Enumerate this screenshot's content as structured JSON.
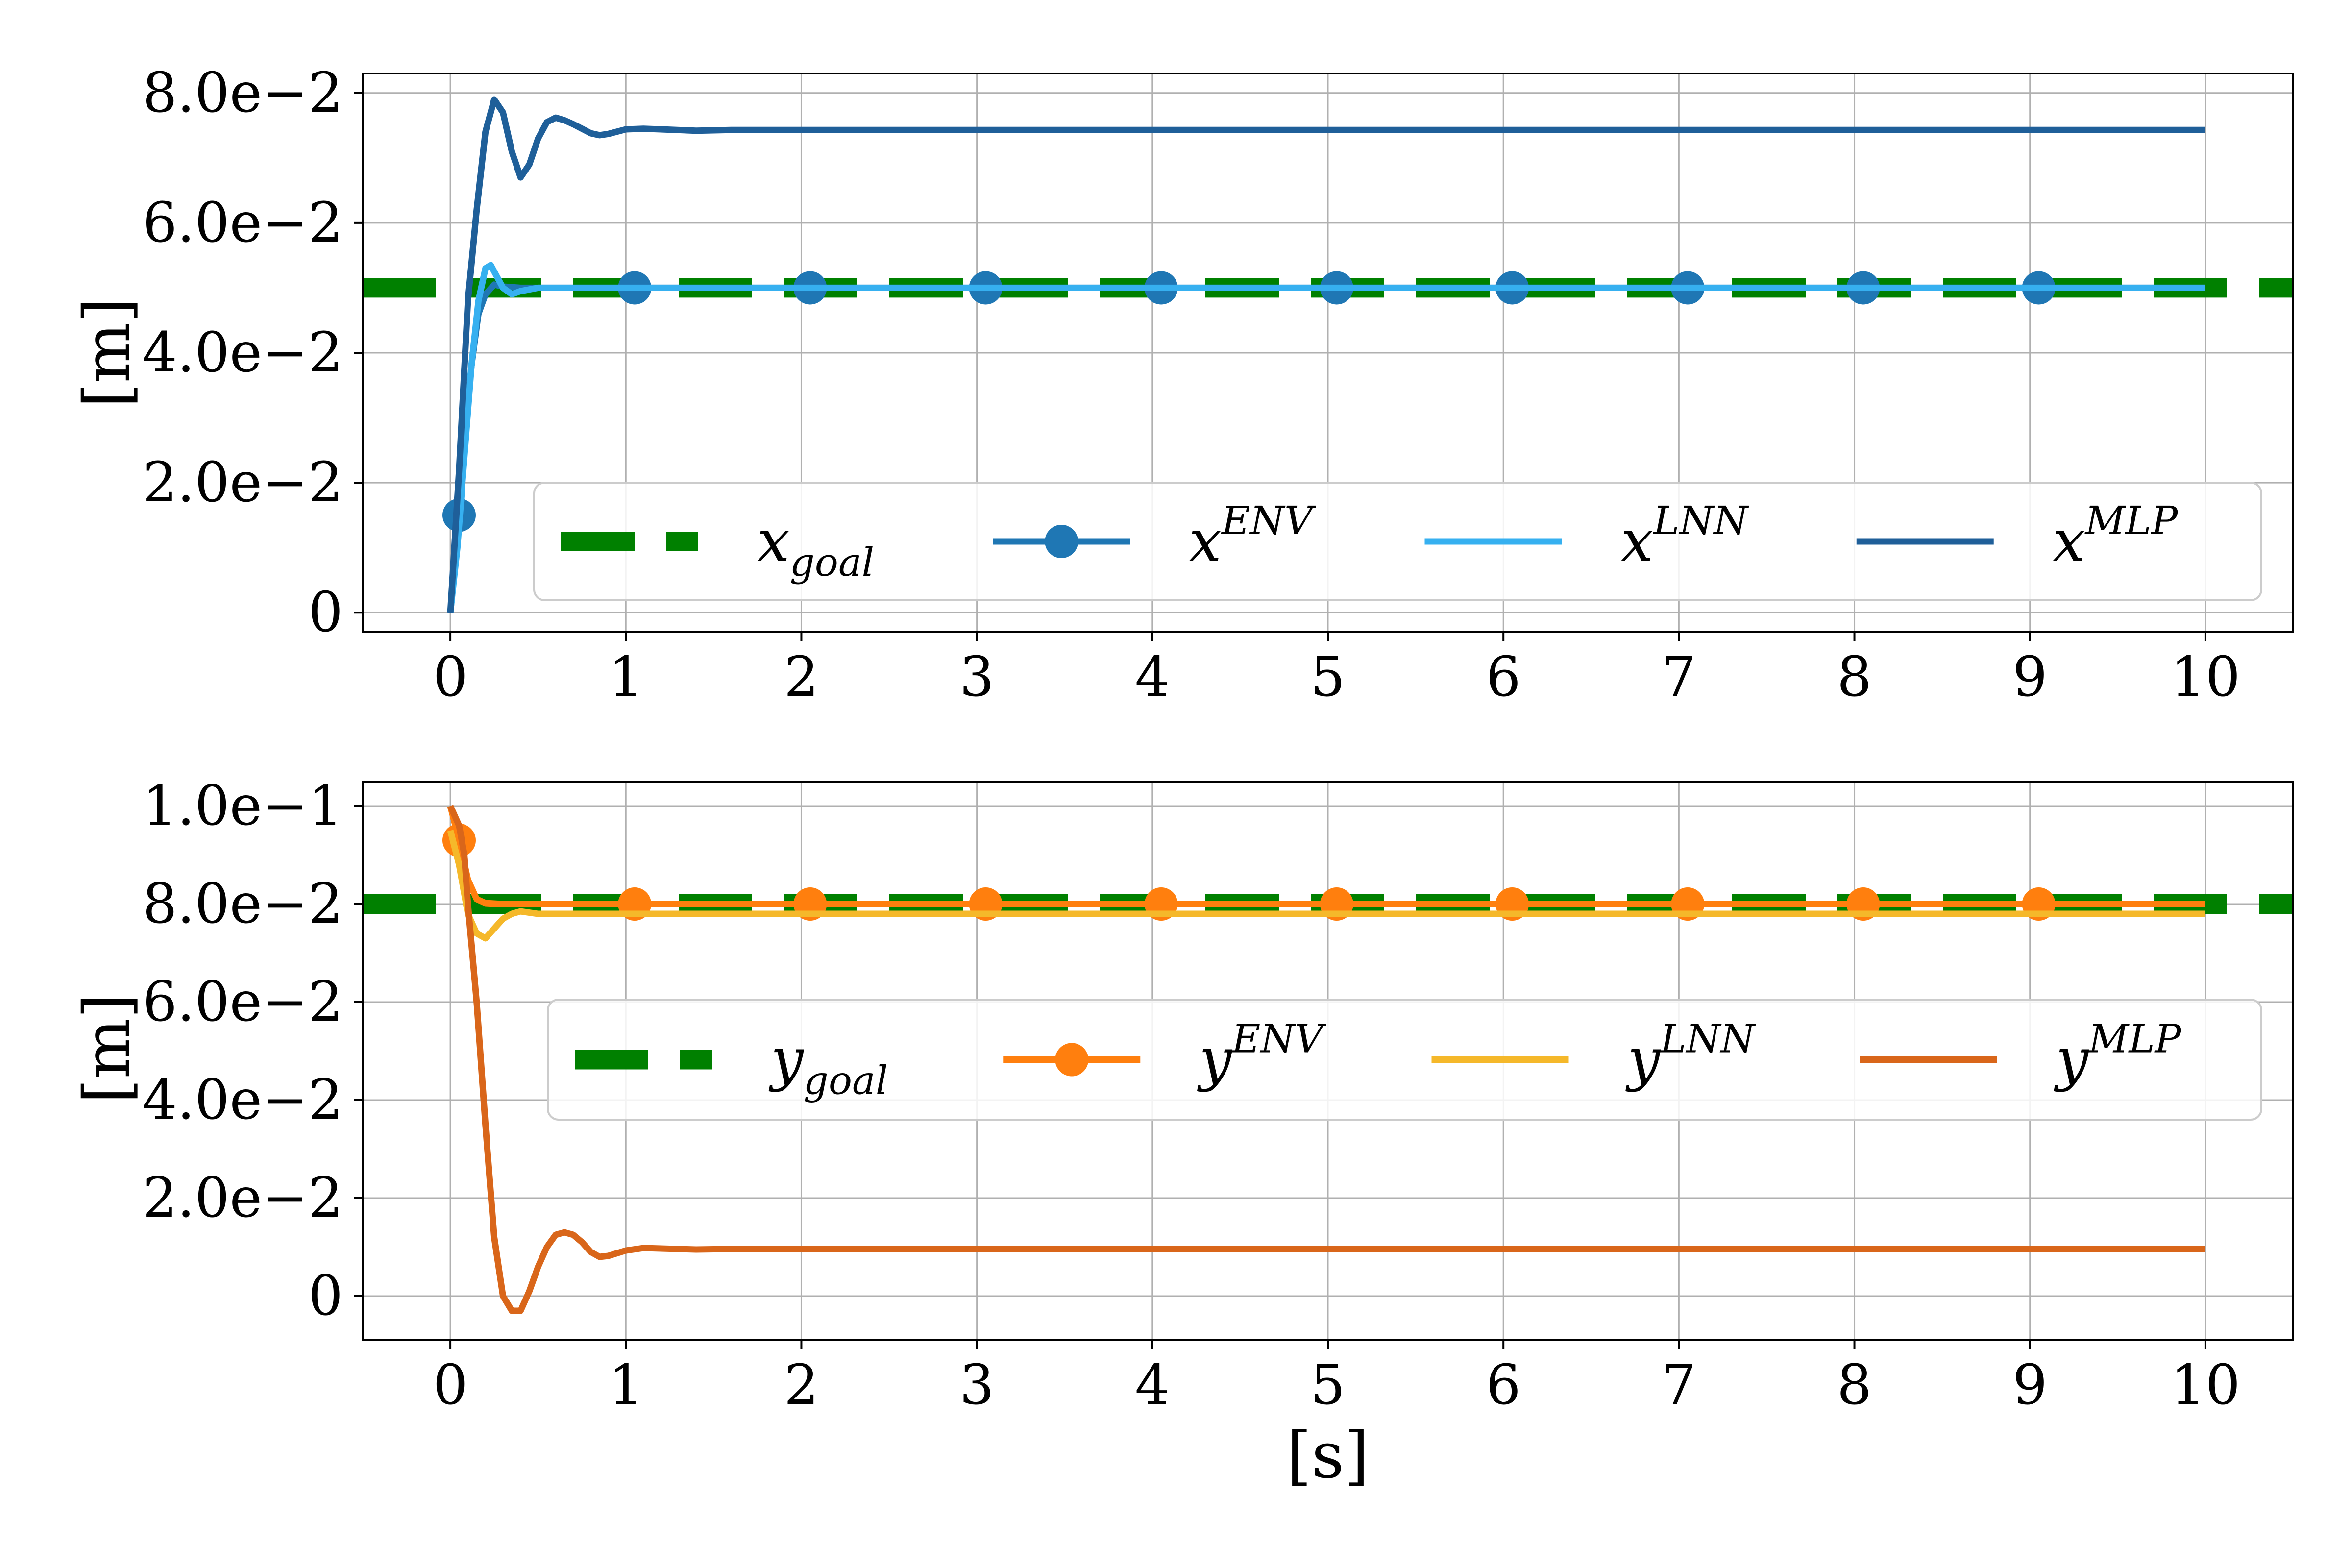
{
  "chart_data": [
    {
      "type": "line",
      "title": "",
      "xlabel": "",
      "ylabel": "[m]",
      "xlim": [
        -0.5,
        10.5
      ],
      "ylim": [
        -0.003,
        0.083
      ],
      "xticks": [
        "0",
        "1",
        "2",
        "3",
        "4",
        "5",
        "6",
        "7",
        "8",
        "9",
        "10"
      ],
      "yticks": [
        {
          "value": 0,
          "label": "0"
        },
        {
          "value": 0.02,
          "label": "2.0e−2"
        },
        {
          "value": 0.04,
          "label": "4.0e−2"
        },
        {
          "value": 0.06,
          "label": "6.0e−2"
        },
        {
          "value": 0.08,
          "label": "8.0e−2"
        }
      ],
      "grid": true,
      "legend": {
        "placement": "lower-right",
        "entries": [
          {
            "base": "x",
            "sub": "goal",
            "sup": ""
          },
          {
            "base": "x",
            "sub": "",
            "sup": "ENV"
          },
          {
            "base": "x",
            "sub": "",
            "sup": "LNN"
          },
          {
            "base": "x",
            "sub": "",
            "sup": "MLP"
          }
        ]
      },
      "series": [
        {
          "name": "x_goal",
          "style": "dashed",
          "color": "#008000",
          "x": [
            -0.5,
            10.5
          ],
          "y": [
            0.05,
            0.05
          ]
        },
        {
          "name": "x^ENV",
          "style": "line-marker",
          "color": "#1f77b4",
          "x": [
            0,
            0.03,
            0.05,
            0.08,
            0.12,
            0.16,
            0.2,
            0.25,
            0.3,
            0.4,
            0.5,
            0.6,
            0.8,
            1.0,
            1.5,
            2,
            3,
            4,
            5,
            6,
            7,
            8,
            9,
            10
          ],
          "y": [
            0,
            0.008,
            0.015,
            0.026,
            0.038,
            0.046,
            0.049,
            0.0505,
            0.0502,
            0.05,
            0.05,
            0.05,
            0.05,
            0.05,
            0.05,
            0.05,
            0.05,
            0.05,
            0.05,
            0.05,
            0.05,
            0.05,
            0.05,
            0.05
          ],
          "markers_x": [
            0.05,
            1.05,
            2.05,
            3.05,
            4.05,
            5.05,
            6.05,
            7.05,
            8.05,
            9.05
          ],
          "markers_y": [
            0.015,
            0.05,
            0.05,
            0.05,
            0.05,
            0.05,
            0.05,
            0.05,
            0.05,
            0.05
          ]
        },
        {
          "name": "x^LNN",
          "style": "line",
          "color": "#36b0f0",
          "x": [
            0,
            0.04,
            0.08,
            0.12,
            0.16,
            0.2,
            0.23,
            0.26,
            0.3,
            0.35,
            0.4,
            0.5,
            0.6,
            0.8,
            1.0,
            2,
            5,
            10
          ],
          "y": [
            0,
            0.01,
            0.024,
            0.038,
            0.048,
            0.053,
            0.0535,
            0.052,
            0.05,
            0.049,
            0.0495,
            0.05,
            0.05,
            0.05,
            0.05,
            0.05,
            0.05,
            0.05
          ]
        },
        {
          "name": "x^MLP",
          "style": "line",
          "color": "#1f5f99",
          "x": [
            0,
            0.05,
            0.1,
            0.15,
            0.2,
            0.25,
            0.3,
            0.35,
            0.4,
            0.45,
            0.5,
            0.55,
            0.6,
            0.65,
            0.7,
            0.75,
            0.8,
            0.85,
            0.9,
            1.0,
            1.1,
            1.2,
            1.4,
            1.6,
            2,
            3,
            5,
            10
          ],
          "y": [
            0,
            0.022,
            0.048,
            0.062,
            0.074,
            0.079,
            0.077,
            0.071,
            0.067,
            0.069,
            0.073,
            0.0755,
            0.0762,
            0.0758,
            0.0752,
            0.0745,
            0.0738,
            0.0735,
            0.0737,
            0.0744,
            0.0745,
            0.0744,
            0.0742,
            0.0743,
            0.0743,
            0.0743,
            0.0743,
            0.0743
          ]
        }
      ]
    },
    {
      "type": "line",
      "title": "",
      "xlabel": "[s]",
      "ylabel": "[m]",
      "xlim": [
        -0.5,
        10.5
      ],
      "ylim": [
        -0.009,
        0.105
      ],
      "xticks": [
        "0",
        "1",
        "2",
        "3",
        "4",
        "5",
        "6",
        "7",
        "8",
        "9",
        "10"
      ],
      "yticks": [
        {
          "value": 0,
          "label": "0"
        },
        {
          "value": 0.02,
          "label": "2.0e−2"
        },
        {
          "value": 0.04,
          "label": "4.0e−2"
        },
        {
          "value": 0.06,
          "label": "6.0e−2"
        },
        {
          "value": 0.08,
          "label": "8.0e−2"
        },
        {
          "value": 0.1,
          "label": "1.0e−1"
        }
      ],
      "grid": true,
      "legend": {
        "placement": "center-right",
        "entries": [
          {
            "base": "y",
            "sub": "goal",
            "sup": ""
          },
          {
            "base": "y",
            "sub": "",
            "sup": "ENV"
          },
          {
            "base": "y",
            "sub": "",
            "sup": "LNN"
          },
          {
            "base": "y",
            "sub": "",
            "sup": "MLP"
          }
        ]
      },
      "series": [
        {
          "name": "y_goal",
          "style": "dashed",
          "color": "#008000",
          "x": [
            -0.5,
            10.5
          ],
          "y": [
            0.08,
            0.08
          ]
        },
        {
          "name": "y^ENV",
          "style": "line-marker",
          "color": "#ff7f0e",
          "x": [
            0,
            0.05,
            0.1,
            0.15,
            0.2,
            0.3,
            0.5,
            1.0,
            2,
            5,
            10
          ],
          "y": [
            0.1,
            0.093,
            0.085,
            0.081,
            0.0802,
            0.08,
            0.08,
            0.08,
            0.08,
            0.08,
            0.08
          ],
          "markers_x": [
            0.05,
            1.05,
            2.05,
            3.05,
            4.05,
            5.05,
            6.05,
            7.05,
            8.05,
            9.05
          ],
          "markers_y": [
            0.093,
            0.08,
            0.08,
            0.08,
            0.08,
            0.08,
            0.08,
            0.08,
            0.08,
            0.08
          ]
        },
        {
          "name": "y^LNN",
          "style": "line",
          "color": "#f5b82a",
          "x": [
            0,
            0.05,
            0.1,
            0.15,
            0.2,
            0.25,
            0.3,
            0.35,
            0.4,
            0.5,
            0.6,
            1.0,
            2,
            5,
            10
          ],
          "y": [
            0.095,
            0.088,
            0.078,
            0.074,
            0.073,
            0.075,
            0.077,
            0.078,
            0.0785,
            0.078,
            0.078,
            0.078,
            0.078,
            0.078,
            0.078
          ]
        },
        {
          "name": "y^MLP",
          "style": "line",
          "color": "#d9661a",
          "x": [
            0,
            0.05,
            0.08,
            0.1,
            0.15,
            0.2,
            0.25,
            0.3,
            0.35,
            0.4,
            0.45,
            0.5,
            0.55,
            0.6,
            0.65,
            0.7,
            0.75,
            0.8,
            0.85,
            0.9,
            1.0,
            1.1,
            1.2,
            1.4,
            1.6,
            2,
            5,
            10
          ],
          "y": [
            0.1,
            0.096,
            0.09,
            0.08,
            0.06,
            0.035,
            0.012,
            0.0,
            -0.003,
            -0.003,
            0.001,
            0.006,
            0.01,
            0.0125,
            0.013,
            0.0125,
            0.011,
            0.009,
            0.008,
            0.0082,
            0.0093,
            0.0098,
            0.0097,
            0.0095,
            0.0096,
            0.0096,
            0.0096,
            0.0096
          ]
        }
      ]
    }
  ]
}
